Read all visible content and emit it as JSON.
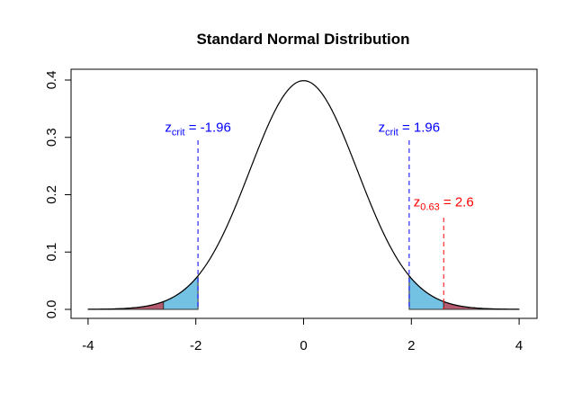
{
  "chart_data": {
    "type": "line",
    "title": "Standard Normal Distribution",
    "xlabel": "",
    "ylabel": "",
    "xlim": [
      -4,
      4
    ],
    "ylim": [
      0,
      0.4
    ],
    "x_ticks": [
      "-4",
      "-2",
      "0",
      "2",
      "4"
    ],
    "x_tick_values": [
      -4,
      -2,
      0,
      2,
      4
    ],
    "y_ticks": [
      "0.0",
      "0.1",
      "0.2",
      "0.3",
      "0.4"
    ],
    "y_tick_values": [
      0,
      0.1,
      0.2,
      0.3,
      0.4
    ],
    "grid": false,
    "curve": {
      "name": "density",
      "function": "dnorm",
      "mean": 0,
      "sd": 1,
      "color": "#000000"
    },
    "shaded_regions": [
      {
        "name": "lower-tail-beyond-observed",
        "from": -4,
        "to": -2.6,
        "color": "#b55a6e"
      },
      {
        "name": "lower-critical-region",
        "from": -2.6,
        "to": -1.96,
        "color": "#73c2e3"
      },
      {
        "name": "upper-critical-region",
        "from": 1.96,
        "to": 2.6,
        "color": "#73c2e3"
      },
      {
        "name": "upper-tail-beyond-observed",
        "from": 2.6,
        "to": 4,
        "color": "#b55a6e"
      }
    ],
    "reference_lines": [
      {
        "name": "z-crit-lower",
        "x": -1.96,
        "y_top": 0.295,
        "color": "#0000ff"
      },
      {
        "name": "z-crit-upper",
        "x": 1.96,
        "y_top": 0.295,
        "color": "#0000ff"
      },
      {
        "name": "z-observed",
        "x": 2.6,
        "y_top": 0.16,
        "color": "#ff0000"
      }
    ],
    "annotations": [
      {
        "name": "z-crit-lower-label",
        "main": "z",
        "sub": "crit",
        "rest": " = -1.96",
        "x": -1.96,
        "y": 0.31,
        "color": "#0000ff"
      },
      {
        "name": "z-crit-upper-label",
        "main": "z",
        "sub": "crit",
        "rest": " = 1.96",
        "x": 1.96,
        "y": 0.31,
        "color": "#0000ff"
      },
      {
        "name": "z-observed-label",
        "main": "z",
        "sub": "0.63",
        "rest": " = 2.6",
        "x": 2.6,
        "y": 0.18,
        "color": "#ff0000"
      }
    ]
  }
}
